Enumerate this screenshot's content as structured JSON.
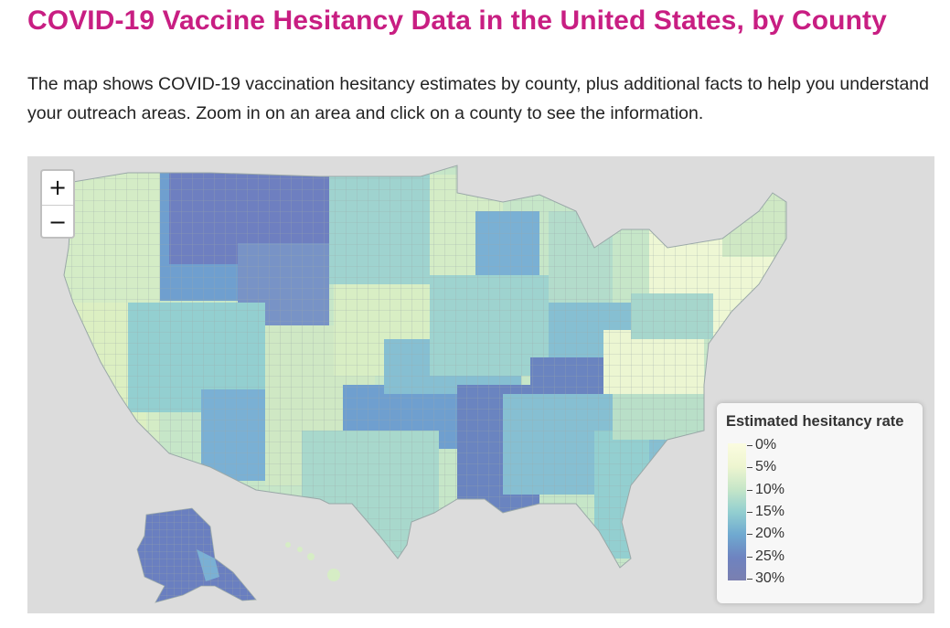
{
  "header": {
    "title": "COVID-19 Vaccine Hesitancy Data in the United States, by County",
    "description": "The map shows COVID-19 vaccination hesitancy estimates by county, plus additional facts to help you understand your outreach areas. Zoom in on an area and click on a county to see the information."
  },
  "map": {
    "zoom_in_label": "+",
    "zoom_out_label": "−",
    "background_color": "#dcdcdc",
    "county_border_color": "#9aa8a8"
  },
  "legend": {
    "title": "Estimated hesitancy rate",
    "labels": [
      "0%",
      "5%",
      "10%",
      "15%",
      "20%",
      "25%",
      "30%"
    ],
    "color_stops": [
      "#fbfce0",
      "#eef5d0",
      "#c6e6c8",
      "#93cfd0",
      "#6fa9d0",
      "#6e83c0",
      "#7a7fb0"
    ]
  }
}
